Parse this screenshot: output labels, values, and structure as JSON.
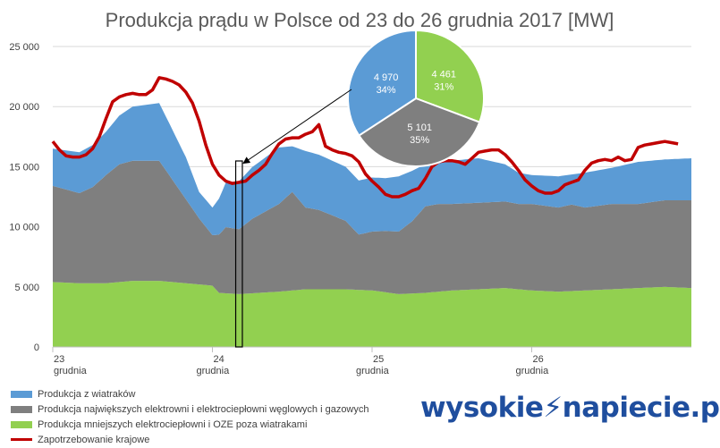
{
  "chart_data": [
    {
      "type": "area",
      "title": "Produkcja prądu w Polsce od 23 do 26 grudnia 2017 [MW]",
      "ylim": [
        0,
        25000
      ],
      "yticks": [
        "0",
        "5 000",
        "10 000",
        "15 000",
        "20 000",
        "25 000"
      ],
      "ytick_values": [
        0,
        5000,
        10000,
        15000,
        20000,
        25000
      ],
      "xlim": [
        0,
        96
      ],
      "x_ticks": [
        {
          "pos": 0,
          "day": "23",
          "month": "grudnia"
        },
        {
          "pos": 24,
          "day": "24",
          "month": "grudnia"
        },
        {
          "pos": 48,
          "day": "25",
          "month": "grudnia"
        },
        {
          "pos": 72,
          "day": "26",
          "month": "grudnia"
        }
      ],
      "stacked": true,
      "series": [
        {
          "name": "Produkcja mniejszych elektrociepłowni i OZE poza wiatrakami",
          "color": "#92d050",
          "points": [
            [
              0,
              5400
            ],
            [
              4,
              5300
            ],
            [
              8,
              5300
            ],
            [
              12,
              5500
            ],
            [
              16,
              5500
            ],
            [
              20,
              5300
            ],
            [
              24,
              5100
            ],
            [
              25,
              4500
            ],
            [
              28,
              4400
            ],
            [
              34,
              4600
            ],
            [
              38,
              4800
            ],
            [
              44,
              4800
            ],
            [
              48,
              4700
            ],
            [
              52,
              4400
            ],
            [
              56,
              4500
            ],
            [
              60,
              4700
            ],
            [
              64,
              4800
            ],
            [
              68,
              4900
            ],
            [
              72,
              4700
            ],
            [
              76,
              4600
            ],
            [
              80,
              4700
            ],
            [
              84,
              4800
            ],
            [
              88,
              4900
            ],
            [
              92,
              5000
            ],
            [
              96,
              4900
            ]
          ]
        },
        {
          "name": "Produkcja największych elektrowni i elektrociepłowni węglowych i gazowych",
          "color": "#7f7f7f",
          "points": [
            [
              0,
              8000
            ],
            [
              4,
              7500
            ],
            [
              6,
              8000
            ],
            [
              8,
              9000
            ],
            [
              10,
              9800
            ],
            [
              12,
              10000
            ],
            [
              16,
              10000
            ],
            [
              18,
              8500
            ],
            [
              20,
              7000
            ],
            [
              22,
              5500
            ],
            [
              24,
              4200
            ],
            [
              26,
              5500
            ],
            [
              28,
              5400
            ],
            [
              30,
              6200
            ],
            [
              34,
              7300
            ],
            [
              36,
              8200
            ],
            [
              38,
              6800
            ],
            [
              40,
              6600
            ],
            [
              44,
              5700
            ],
            [
              46,
              4600
            ],
            [
              48,
              4900
            ],
            [
              50,
              5100
            ],
            [
              52,
              5200
            ],
            [
              54,
              6000
            ],
            [
              56,
              7200
            ],
            [
              58,
              7300
            ],
            [
              60,
              7200
            ],
            [
              64,
              7200
            ],
            [
              68,
              7200
            ],
            [
              70,
              7100
            ],
            [
              72,
              7200
            ],
            [
              76,
              7000
            ],
            [
              78,
              7200
            ],
            [
              80,
              6900
            ],
            [
              84,
              7100
            ],
            [
              88,
              7000
            ],
            [
              92,
              7200
            ],
            [
              96,
              7300
            ]
          ]
        },
        {
          "name": "Produkcja z wiatraków",
          "color": "#5b9bd5",
          "points": [
            [
              0,
              3100
            ],
            [
              4,
              3400
            ],
            [
              8,
              3600
            ],
            [
              12,
              4500
            ],
            [
              16,
              4800
            ],
            [
              20,
              3500
            ],
            [
              22,
              2200
            ],
            [
              24,
              2300
            ],
            [
              26,
              3700
            ],
            [
              28,
              4000
            ],
            [
              30,
              4300
            ],
            [
              34,
              4700
            ],
            [
              36,
              3800
            ],
            [
              38,
              4700
            ],
            [
              40,
              4600
            ],
            [
              44,
              4500
            ],
            [
              46,
              4500
            ],
            [
              48,
              4500
            ],
            [
              50,
              4400
            ],
            [
              52,
              4600
            ],
            [
              54,
              4200
            ],
            [
              56,
              3500
            ],
            [
              58,
              3400
            ],
            [
              60,
              3600
            ],
            [
              64,
              3700
            ],
            [
              68,
              3100
            ],
            [
              70,
              2600
            ],
            [
              72,
              2400
            ],
            [
              76,
              2600
            ],
            [
              78,
              2500
            ],
            [
              80,
              2900
            ],
            [
              84,
              3000
            ],
            [
              88,
              3500
            ],
            [
              92,
              3400
            ],
            [
              96,
              3500
            ]
          ]
        },
        {
          "name": "Zapotrzebowanie krajowe",
          "color": "#c00000",
          "points": [
            [
              0,
              17100
            ],
            [
              1,
              16400
            ],
            [
              2,
              15900
            ],
            [
              3,
              15800
            ],
            [
              4,
              15800
            ],
            [
              5,
              16000
            ],
            [
              6,
              16500
            ],
            [
              7,
              17500
            ],
            [
              8,
              19000
            ],
            [
              9,
              20400
            ],
            [
              10,
              20800
            ],
            [
              11,
              21000
            ],
            [
              12,
              21100
            ],
            [
              13,
              21000
            ],
            [
              14,
              21000
            ],
            [
              15,
              21400
            ],
            [
              16,
              22400
            ],
            [
              17,
              22300
            ],
            [
              18,
              22100
            ],
            [
              19,
              21800
            ],
            [
              20,
              21200
            ],
            [
              21,
              20300
            ],
            [
              22,
              18800
            ],
            [
              23,
              16800
            ],
            [
              24,
              15200
            ],
            [
              25,
              14300
            ],
            [
              26,
              13800
            ],
            [
              27,
              13600
            ],
            [
              28,
              13700
            ],
            [
              29,
              13800
            ],
            [
              30,
              14300
            ],
            [
              31,
              14700
            ],
            [
              32,
              15200
            ],
            [
              33,
              16100
            ],
            [
              34,
              16900
            ],
            [
              35,
              17300
            ],
            [
              36,
              17400
            ],
            [
              37,
              17400
            ],
            [
              38,
              17700
            ],
            [
              39,
              17900
            ],
            [
              40,
              18500
            ],
            [
              41,
              16700
            ],
            [
              42,
              16400
            ],
            [
              43,
              16200
            ],
            [
              44,
              16100
            ],
            [
              45,
              15900
            ],
            [
              46,
              15400
            ],
            [
              47,
              14400
            ],
            [
              48,
              13800
            ],
            [
              49,
              13300
            ],
            [
              50,
              12700
            ],
            [
              51,
              12500
            ],
            [
              52,
              12500
            ],
            [
              53,
              12700
            ],
            [
              54,
              13000
            ],
            [
              55,
              13200
            ],
            [
              56,
              14000
            ],
            [
              57,
              15000
            ],
            [
              58,
              15400
            ],
            [
              59,
              15500
            ],
            [
              60,
              15500
            ],
            [
              61,
              15400
            ],
            [
              62,
              15200
            ],
            [
              63,
              15700
            ],
            [
              64,
              16200
            ],
            [
              65,
              16300
            ],
            [
              66,
              16400
            ],
            [
              67,
              16400
            ],
            [
              68,
              16000
            ],
            [
              69,
              15400
            ],
            [
              70,
              14700
            ],
            [
              71,
              13900
            ],
            [
              72,
              13400
            ],
            [
              73,
              13000
            ],
            [
              74,
              12800
            ],
            [
              75,
              12800
            ],
            [
              76,
              13000
            ],
            [
              77,
              13500
            ],
            [
              78,
              13700
            ],
            [
              79,
              13900
            ],
            [
              80,
              14700
            ],
            [
              81,
              15300
            ],
            [
              82,
              15500
            ],
            [
              83,
              15600
            ],
            [
              84,
              15500
            ],
            [
              85,
              15800
            ],
            [
              86,
              15500
            ],
            [
              87,
              15600
            ],
            [
              88,
              16600
            ],
            [
              89,
              16800
            ],
            [
              90,
              16900
            ],
            [
              91,
              17000
            ],
            [
              92,
              17100
            ],
            [
              93,
              17000
            ],
            [
              94,
              16900
            ]
          ]
        }
      ],
      "highlight_range": [
        27.5,
        28.5
      ],
      "legend_order": [
        "Produkcja z wiatraków",
        "Produkcja największych elektrowni i elektrociepłowni węglowych i gazowych",
        "Produkcja mniejszych elektrociepłowni i OZE poza wiatrakami",
        "Zapotrzebowanie krajowe"
      ]
    },
    {
      "type": "pie",
      "title": "",
      "slices": [
        {
          "label": "4 461",
          "value": 4461,
          "percent": "31%",
          "color": "#92d050"
        },
        {
          "label": "5 101",
          "value": 5101,
          "percent": "35%",
          "color": "#7f7f7f"
        },
        {
          "label": "4 970",
          "value": 4970,
          "percent": "34%",
          "color": "#5b9bd5"
        }
      ]
    }
  ],
  "legend": {
    "items": [
      {
        "label": "Produkcja z wiatraków",
        "color": "#5b9bd5",
        "kind": "box"
      },
      {
        "label": "Produkcja największych elektrowni i elektrociepłowni węglowych i gazowych",
        "color": "#7f7f7f",
        "kind": "box"
      },
      {
        "label": "Produkcja mniejszych elektrociepłowni i OZE poza wiatrakami",
        "color": "#92d050",
        "kind": "box"
      },
      {
        "label": "Zapotrzebowanie krajowe",
        "color": "#c00000",
        "kind": "line"
      }
    ]
  },
  "logo": {
    "part1": "wysokie",
    "part2": "napiecie.pl"
  }
}
